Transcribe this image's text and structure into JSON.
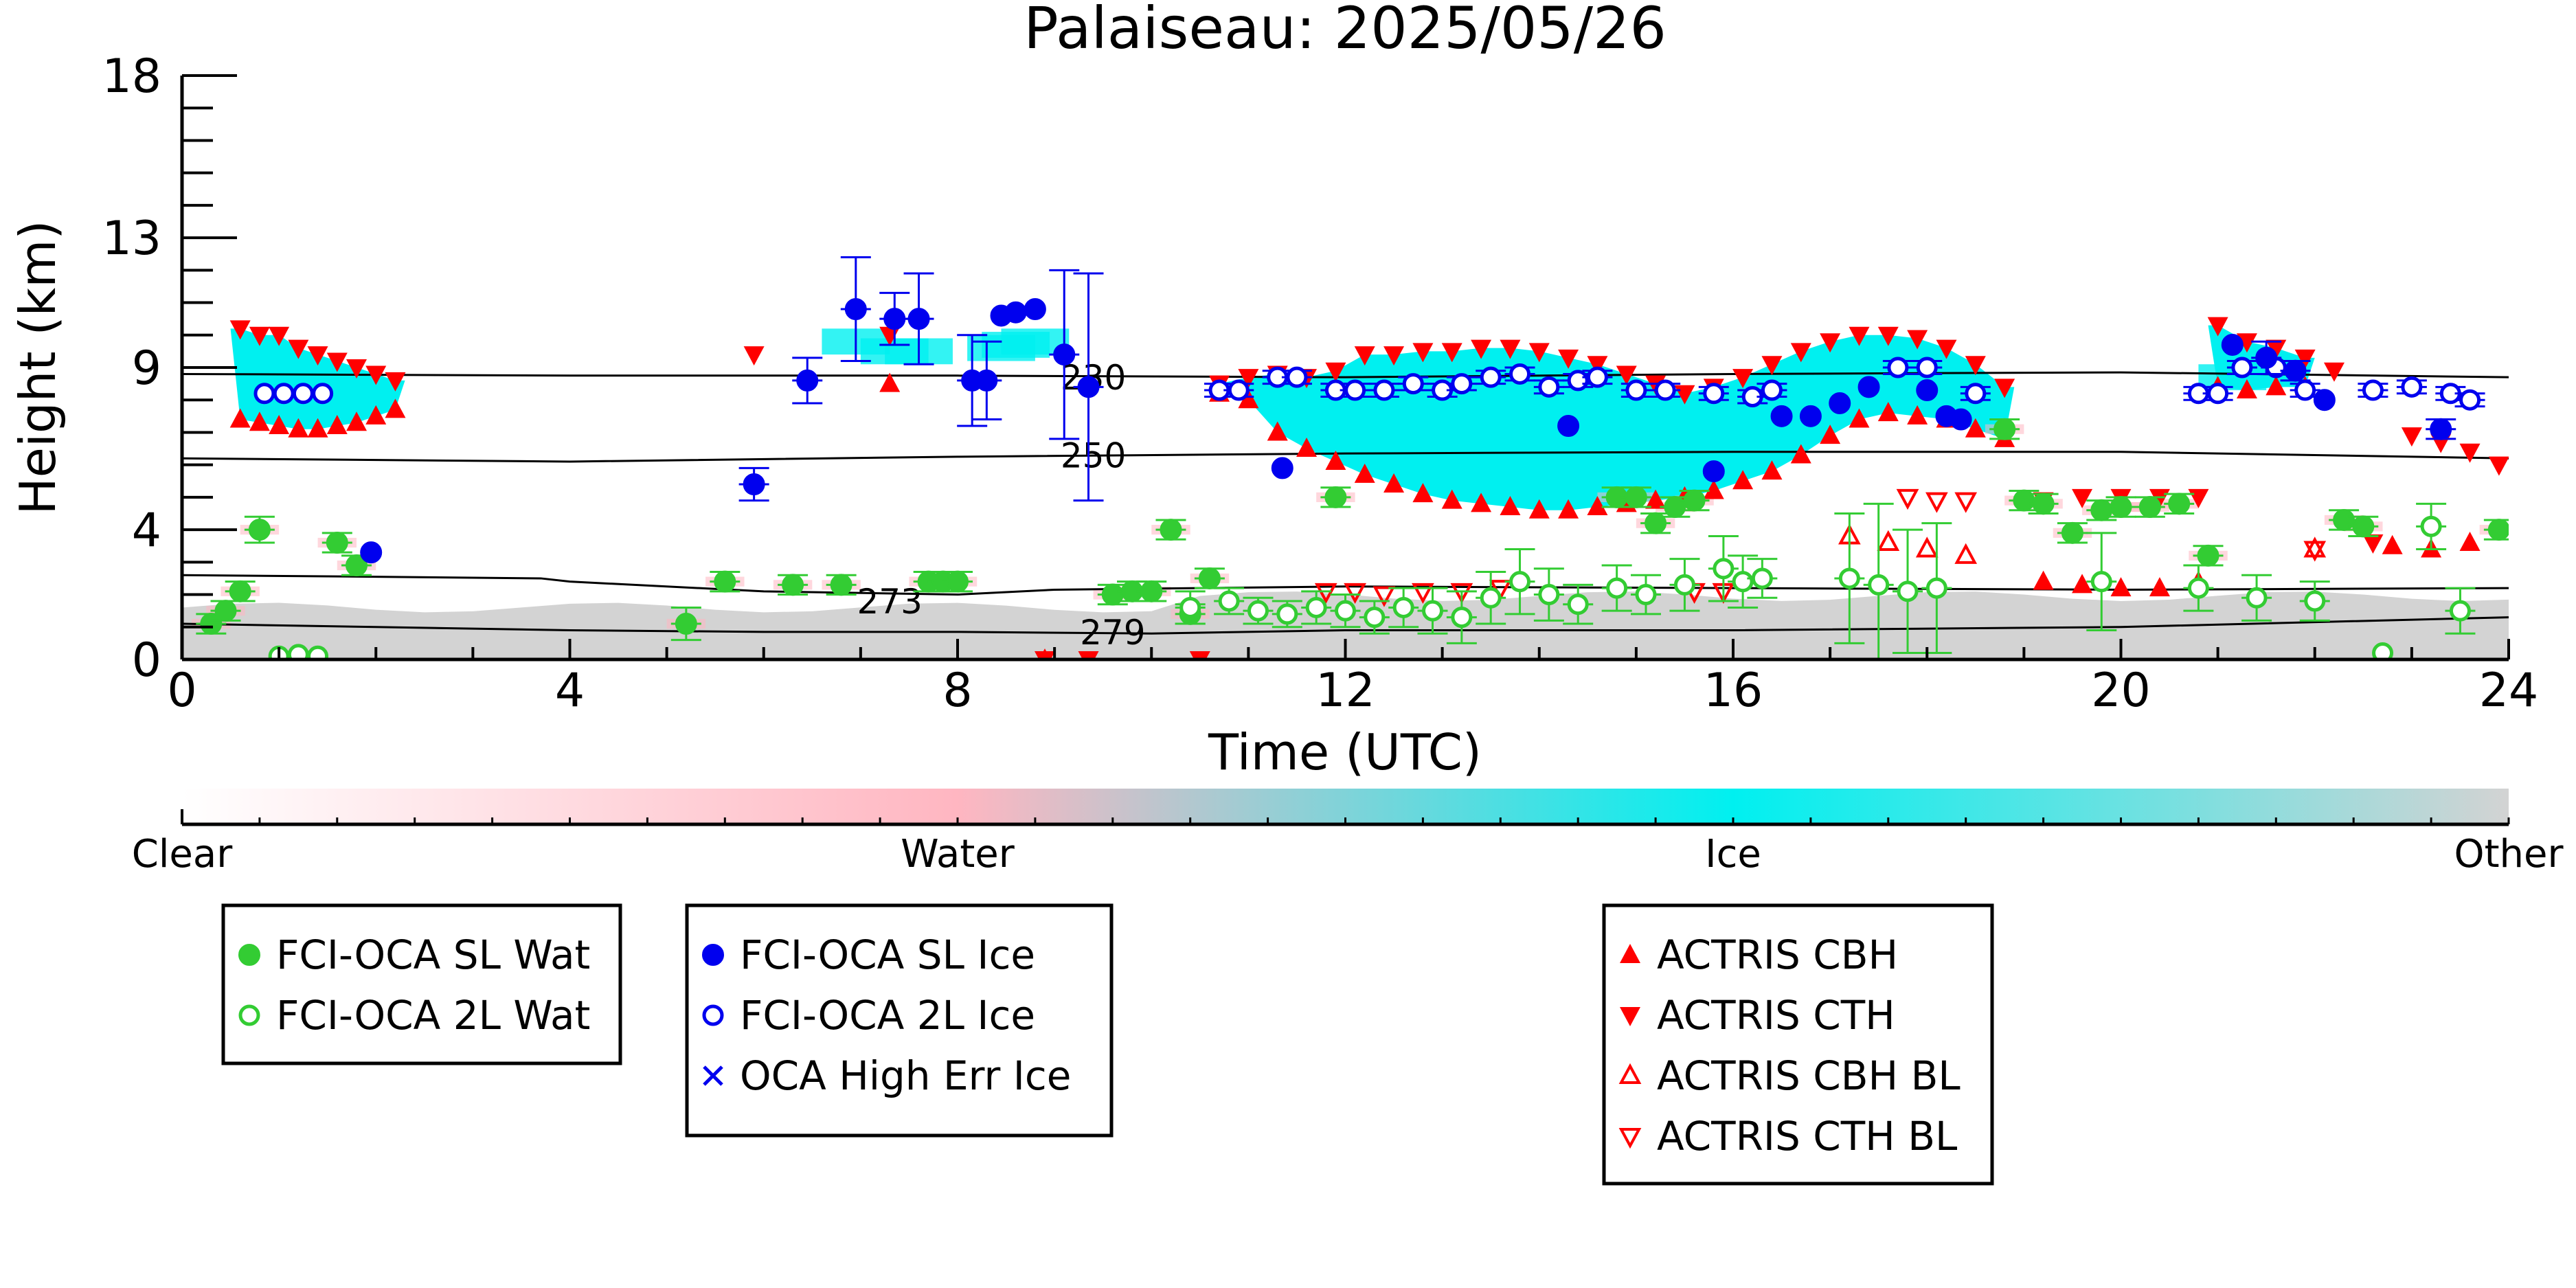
{
  "chart_data": {
    "type": "scatter",
    "title": "Palaiseau: 2025/05/26",
    "xlabel": "Time (UTC)",
    "ylabel": "Height (km)",
    "xlim": [
      0,
      24
    ],
    "ylim": [
      0,
      18
    ],
    "x_ticks": [
      0,
      4,
      8,
      12,
      16,
      20,
      24
    ],
    "y_ticks": [
      0,
      4,
      9,
      13,
      18
    ],
    "colorbar": {
      "labels": [
        "Clear",
        "Water",
        "Ice",
        "Other"
      ],
      "colors": [
        "#ffffff",
        "#ffb6c1",
        "#00f0f0",
        "#d3d3d3"
      ]
    },
    "contours": [
      {
        "label": "230",
        "label_x": 9.4,
        "label_y": 8.7,
        "x": [
          0,
          4,
          8,
          12,
          16,
          20,
          24
        ],
        "y": [
          8.8,
          8.75,
          8.75,
          8.7,
          8.8,
          8.85,
          8.7
        ]
      },
      {
        "label": "250",
        "label_x": 9.4,
        "label_y": 6.3,
        "x": [
          0,
          4,
          8,
          12,
          16,
          20,
          24
        ],
        "y": [
          6.2,
          6.1,
          6.25,
          6.35,
          6.4,
          6.4,
          6.2
        ]
      },
      {
        "label": "273",
        "label_x": 7.3,
        "label_y": 1.8,
        "x": [
          0,
          2,
          3.7,
          4,
          6,
          8,
          9,
          12,
          16,
          20,
          24
        ],
        "y": [
          2.6,
          2.55,
          2.5,
          2.4,
          2.1,
          2.0,
          2.15,
          2.25,
          2.2,
          2.15,
          2.2
        ]
      },
      {
        "label": "279",
        "label_x": 9.6,
        "label_y": 0.85,
        "x": [
          0,
          2,
          4,
          6,
          8,
          10,
          12,
          16,
          20,
          24
        ],
        "y": [
          1.1,
          1.0,
          0.9,
          0.85,
          0.85,
          0.8,
          0.9,
          0.9,
          1.0,
          1.3
        ]
      }
    ],
    "series": [
      {
        "name": "FCI-OCA SL Wat",
        "color": "#33cc33",
        "marker": "circle-filled",
        "x": [
          0.3,
          0.45,
          0.6,
          0.8,
          1.6,
          1.8,
          5.2,
          5.6,
          6.3,
          6.8,
          7.7,
          7.85,
          8.0,
          9.6,
          9.8,
          10.0,
          10.2,
          10.4,
          10.6,
          11.9,
          14.8,
          15.0,
          15.2,
          15.4,
          15.6,
          18.8,
          19.0,
          19.2,
          19.5,
          19.8,
          20.0,
          20.3,
          20.6,
          20.9,
          22.3,
          22.5,
          23.9
        ],
        "y": [
          1.1,
          1.5,
          2.1,
          4.0,
          3.6,
          2.9,
          1.1,
          2.4,
          2.3,
          2.3,
          2.4,
          2.4,
          2.4,
          2.0,
          2.1,
          2.1,
          4.0,
          1.4,
          2.5,
          5.0,
          5.0,
          5.0,
          4.2,
          4.7,
          4.9,
          7.1,
          4.9,
          4.8,
          3.9,
          4.6,
          4.7,
          4.7,
          4.8,
          3.2,
          4.3,
          4.1,
          4.0
        ],
        "yerr": [
          0.3,
          0.3,
          0.3,
          0.4,
          0.3,
          0.3,
          0.5,
          0.3,
          0.3,
          0.3,
          0.3,
          0.3,
          0.3,
          0.3,
          0.3,
          0.3,
          0.3,
          0.3,
          0.3,
          0.3,
          0.3,
          0.3,
          0.3,
          0.3,
          0.3,
          0.3,
          0.3,
          0.3,
          0.3,
          0.3,
          0.3,
          0.3,
          0.3,
          0.3,
          0.3,
          0.3,
          0.3
        ]
      },
      {
        "name": "FCI-OCA 2L Wat",
        "color": "#33cc33",
        "marker": "circle-open",
        "x": [
          1.0,
          1.2,
          1.4,
          10.4,
          10.8,
          11.1,
          11.4,
          11.7,
          12.0,
          12.3,
          12.6,
          12.9,
          13.2,
          13.5,
          13.8,
          14.1,
          14.4,
          14.8,
          15.1,
          15.5,
          15.9,
          16.1,
          16.3,
          17.2,
          17.5,
          17.8,
          18.1,
          19.8,
          20.8,
          21.4,
          22.0,
          22.7,
          23.2,
          23.5
        ],
        "y": [
          0.1,
          0.15,
          0.1,
          1.6,
          1.8,
          1.5,
          1.4,
          1.6,
          1.5,
          1.3,
          1.6,
          1.5,
          1.3,
          1.9,
          2.4,
          2.0,
          1.7,
          2.2,
          2.0,
          2.3,
          2.8,
          2.4,
          2.5,
          2.5,
          2.3,
          2.1,
          2.2,
          2.4,
          2.2,
          1.9,
          1.8,
          0.2,
          4.1,
          1.5
        ],
        "yerr": [
          0,
          0,
          0,
          0.5,
          0.4,
          0.4,
          0.4,
          0.5,
          0.5,
          0.5,
          0.6,
          0.7,
          0.8,
          0.8,
          1.0,
          0.8,
          0.6,
          0.7,
          0.6,
          0.8,
          1.0,
          0.8,
          0.6,
          2.0,
          2.5,
          1.9,
          2.0,
          1.5,
          0.7,
          0.7,
          0.6,
          0,
          0.7,
          0.7
        ]
      },
      {
        "name": "FCI-OCA SL Ice",
        "color": "#0000ee",
        "marker": "circle-filled",
        "x": [
          1.95,
          5.9,
          6.45,
          6.95,
          7.35,
          7.6,
          8.15,
          8.3,
          8.45,
          8.6,
          8.8,
          9.1,
          9.35,
          11.35,
          14.3,
          15.8,
          16.5,
          16.8,
          17.1,
          17.4,
          18.0,
          18.2,
          18.35,
          21.15,
          21.5,
          21.8,
          22.1,
          23.3
        ],
        "y": [
          3.3,
          5.4,
          8.6,
          10.8,
          10.5,
          10.5,
          8.6,
          8.6,
          10.6,
          10.7,
          10.8,
          9.4,
          8.4,
          5.9,
          7.2,
          5.8,
          7.5,
          7.5,
          7.9,
          8.4,
          8.3,
          7.5,
          7.4,
          9.7,
          9.3,
          8.9,
          8.0,
          7.1
        ],
        "yerr": [
          0,
          0.5,
          0.7,
          1.6,
          0.8,
          1.4,
          1.4,
          1.2,
          0,
          0,
          0,
          2.6,
          3.5,
          0,
          0,
          0,
          0,
          0,
          0,
          0,
          0,
          0,
          0,
          0,
          0.5,
          0.3,
          0,
          0.3
        ]
      },
      {
        "name": "FCI-OCA 2L Ice",
        "color": "#0000ee",
        "marker": "circle-open",
        "x": [
          0.85,
          1.05,
          1.25,
          1.45,
          10.7,
          10.9,
          11.3,
          11.5,
          11.9,
          12.1,
          12.4,
          12.7,
          13.0,
          13.2,
          13.5,
          13.8,
          14.1,
          14.4,
          14.6,
          15.0,
          15.3,
          15.8,
          16.2,
          16.4,
          17.7,
          18.0,
          18.5,
          20.8,
          21.0,
          21.25,
          21.6,
          21.9,
          22.6,
          23.0,
          23.4,
          23.6
        ],
        "y": [
          8.2,
          8.2,
          8.2,
          8.2,
          8.3,
          8.3,
          8.7,
          8.7,
          8.3,
          8.3,
          8.3,
          8.5,
          8.3,
          8.5,
          8.7,
          8.8,
          8.4,
          8.6,
          8.7,
          8.3,
          8.3,
          8.2,
          8.1,
          8.3,
          9.0,
          9.0,
          8.2,
          8.2,
          8.2,
          9.0,
          9.0,
          8.3,
          8.3,
          8.4,
          8.2,
          8.0
        ],
        "yerr": [
          0,
          0,
          0,
          0,
          0.2,
          0.2,
          0.2,
          0.2,
          0.2,
          0.2,
          0.2,
          0.2,
          0.2,
          0.2,
          0.2,
          0.2,
          0.2,
          0.2,
          0.2,
          0.2,
          0.2,
          0.2,
          0.2,
          0.2,
          0.2,
          0.2,
          0.2,
          0.2,
          0.2,
          0.2,
          0.2,
          0.2,
          0.2,
          0.2,
          0.2,
          0.2
        ]
      },
      {
        "name": "OCA High Err Ice",
        "color": "#0000ee",
        "marker": "x",
        "x": [],
        "y": []
      },
      {
        "name": "ACTRIS CBH",
        "color": "#ff0000",
        "marker": "triangle-up-filled",
        "x": [
          0.6,
          0.8,
          1.0,
          1.2,
          1.4,
          1.6,
          1.8,
          2.0,
          2.2,
          7.3,
          8.9,
          10.7,
          11.0,
          11.3,
          11.6,
          11.9,
          12.2,
          12.5,
          12.8,
          13.1,
          13.4,
          13.7,
          14.0,
          14.3,
          14.6,
          14.9,
          15.2,
          15.5,
          15.8,
          16.1,
          16.4,
          16.7,
          17.0,
          17.3,
          17.6,
          17.9,
          18.2,
          18.5,
          18.8,
          19.2,
          19.6,
          20.0,
          20.4,
          20.8,
          21.0,
          21.3,
          21.6,
          21.9,
          22.8,
          23.2,
          23.6
        ],
        "y": [
          7.4,
          7.3,
          7.2,
          7.1,
          7.1,
          7.2,
          7.3,
          7.5,
          7.7,
          8.5,
          0.0,
          8.2,
          8.0,
          7.0,
          6.5,
          6.1,
          5.7,
          5.4,
          5.1,
          4.9,
          4.8,
          4.7,
          4.6,
          4.6,
          4.7,
          4.8,
          4.9,
          5.0,
          5.2,
          5.5,
          5.8,
          6.3,
          6.9,
          7.4,
          7.6,
          7.5,
          7.4,
          7.1,
          6.8,
          2.4,
          2.3,
          2.2,
          2.2,
          2.4,
          8.4,
          8.3,
          8.4,
          8.4,
          3.5,
          3.4,
          3.6
        ]
      },
      {
        "name": "ACTRIS CTH",
        "color": "#ff0000",
        "marker": "triangle-down-filled",
        "x": [
          0.6,
          0.8,
          1.0,
          1.2,
          1.4,
          1.6,
          1.8,
          2.0,
          2.2,
          5.9,
          7.3,
          8.9,
          9.35,
          10.5,
          10.7,
          11.0,
          11.3,
          11.6,
          11.9,
          12.2,
          12.5,
          12.8,
          13.1,
          13.4,
          13.7,
          14.0,
          14.3,
          14.6,
          14.9,
          15.2,
          15.5,
          15.8,
          16.1,
          16.4,
          16.7,
          17.0,
          17.3,
          17.6,
          17.9,
          18.2,
          18.5,
          18.8,
          19.2,
          19.6,
          20.0,
          20.4,
          20.8,
          21.0,
          21.3,
          21.6,
          21.9,
          22.2,
          22.6,
          23.0,
          23.3,
          23.6,
          23.9
        ],
        "y": [
          10.2,
          10.0,
          10.0,
          9.6,
          9.4,
          9.2,
          9.0,
          8.8,
          8.6,
          9.4,
          10.0,
          0.0,
          0.0,
          0.0,
          8.5,
          8.7,
          8.8,
          8.7,
          8.9,
          9.4,
          9.4,
          9.5,
          9.5,
          9.6,
          9.6,
          9.5,
          9.3,
          9.1,
          8.8,
          8.5,
          8.2,
          8.4,
          8.7,
          9.1,
          9.5,
          9.8,
          10.0,
          10.0,
          9.9,
          9.6,
          9.1,
          8.4,
          4.9,
          5.0,
          5.0,
          5.0,
          5.0,
          10.3,
          9.8,
          9.6,
          9.3,
          8.9,
          3.6,
          6.9,
          6.7,
          6.4,
          6.0
        ]
      },
      {
        "name": "ACTRIS CBH BL",
        "color": "#ff0000",
        "marker": "triangle-up-open",
        "x": [
          17.2,
          17.6,
          18.0,
          18.4,
          22.0
        ],
        "y": [
          3.8,
          3.6,
          3.4,
          3.2,
          3.4
        ]
      },
      {
        "name": "ACTRIS CTH BL",
        "color": "#ff0000",
        "marker": "triangle-down-open",
        "x": [
          11.8,
          12.1,
          12.4,
          12.8,
          13.2,
          13.6,
          15.6,
          15.9,
          17.8,
          18.1,
          18.4,
          22.0
        ],
        "y": [
          2.1,
          2.1,
          2.0,
          2.1,
          2.1,
          2.2,
          2.1,
          2.1,
          5.0,
          4.9,
          4.9,
          3.4
        ]
      }
    ],
    "legend": {
      "boxes": [
        [
          "FCI-OCA SL Wat",
          "FCI-OCA 2L Wat"
        ],
        [
          "FCI-OCA SL Ice",
          "FCI-OCA 2L Ice",
          "OCA High Err Ice"
        ],
        [
          "ACTRIS CBH",
          "ACTRIS CTH",
          "ACTRIS CBH BL",
          "ACTRIS CTH BL"
        ]
      ]
    }
  }
}
